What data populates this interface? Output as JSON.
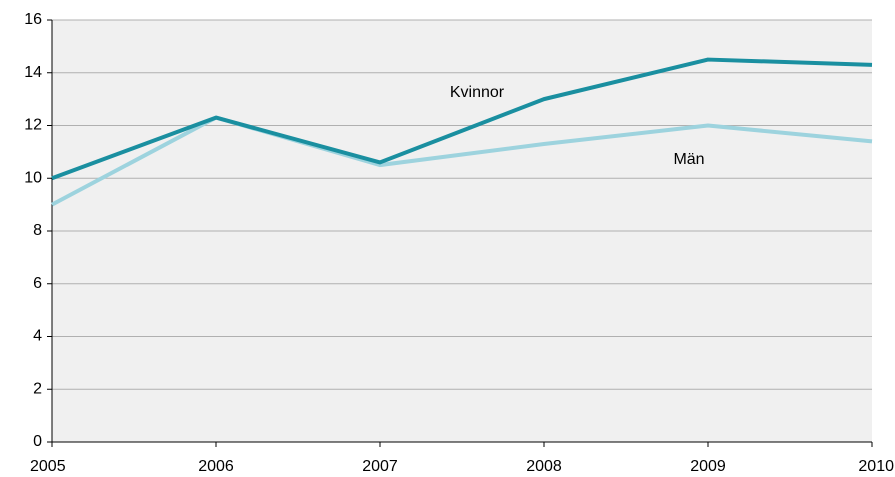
{
  "chart_data": {
    "type": "line",
    "x": [
      2005,
      2006,
      2007,
      2008,
      2009,
      2010
    ],
    "xlim": [
      2005,
      2010
    ],
    "xticks": [
      2005,
      2006,
      2007,
      2008,
      2009,
      2010
    ],
    "ylim": [
      0,
      16
    ],
    "yticks": [
      0,
      2,
      4,
      6,
      8,
      10,
      12,
      14,
      16
    ],
    "grid": true,
    "series": [
      {
        "name": "Kvinnor",
        "color": "#1a8fa0",
        "values": [
          10.0,
          12.3,
          10.6,
          13.0,
          14.5,
          14.3
        ]
      },
      {
        "name": "Män",
        "color": "#9dd3de",
        "values": [
          9.0,
          12.3,
          10.5,
          11.3,
          12.0,
          11.4
        ]
      }
    ]
  }
}
